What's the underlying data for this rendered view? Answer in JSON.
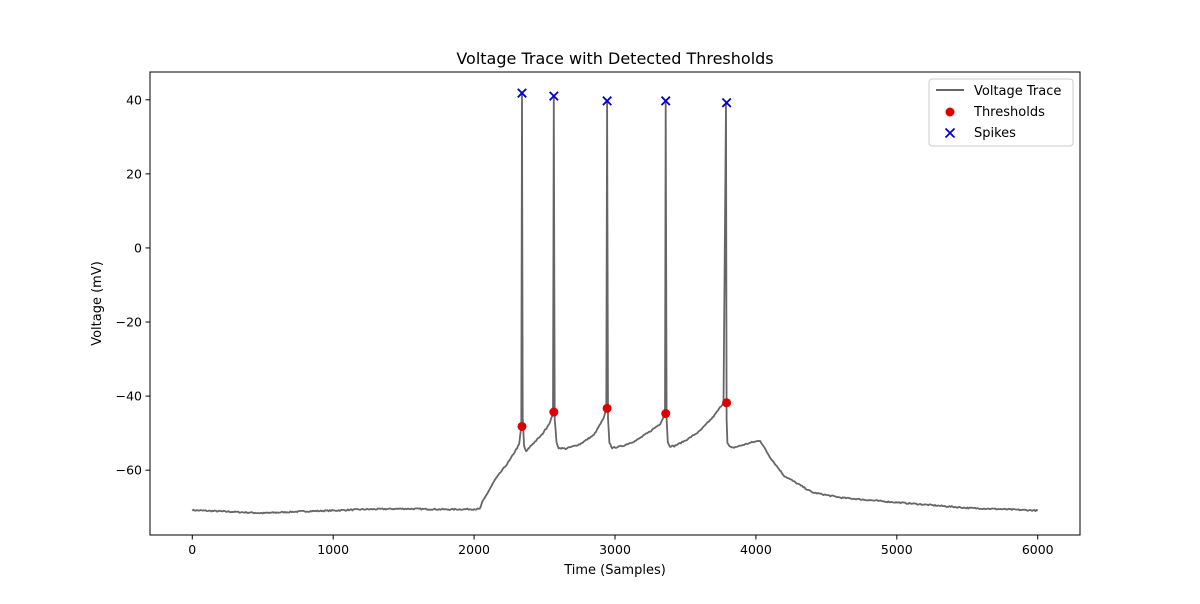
{
  "chart_data": {
    "type": "line",
    "title": "Voltage Trace with Detected Thresholds",
    "xlabel": "Time (Samples)",
    "ylabel": "Voltage (mV)",
    "xlim": [
      -300,
      6300
    ],
    "ylim": [
      -77.5,
      47.5
    ],
    "xticks": [
      0,
      1000,
      2000,
      3000,
      4000,
      5000,
      6000
    ],
    "yticks": [
      -60,
      -40,
      -20,
      0,
      20,
      40
    ],
    "grid": false,
    "legend_position": "top-right",
    "colors": {
      "trace": "#666666",
      "threshold": "#dd0000",
      "spike": "#0000cc"
    },
    "series": [
      {
        "name": "Voltage Trace",
        "kind": "line",
        "x": [
          0,
          200,
          500,
          800,
          1000,
          1200,
          1500,
          1800,
          2040,
          2060,
          2150,
          2250,
          2320,
          2335,
          2340,
          2345,
          2355,
          2370,
          2400,
          2480,
          2540,
          2560,
          2566,
          2572,
          2585,
          2600,
          2650,
          2750,
          2850,
          2920,
          2938,
          2944,
          2950,
          2960,
          2980,
          3050,
          3150,
          3250,
          3320,
          3355,
          3360,
          3366,
          3375,
          3390,
          3420,
          3500,
          3600,
          3700,
          3770,
          3788,
          3792,
          3798,
          3810,
          3830,
          3900,
          3970,
          4030,
          4100,
          4200,
          4400,
          4600,
          4900,
          5200,
          5500,
          5800,
          6000
        ],
        "y": [
          -70.8,
          -71.1,
          -71.6,
          -71.1,
          -70.9,
          -70.6,
          -70.4,
          -70.6,
          -70.5,
          -68.5,
          -62.5,
          -57.5,
          -53.0,
          -48.2,
          41.5,
          -46.0,
          -53.5,
          -55.0,
          -53.5,
          -50.5,
          -47.0,
          -44.5,
          40.5,
          -46.0,
          -52.5,
          -54.0,
          -54.2,
          -53.0,
          -50.5,
          -46.0,
          -43.5,
          39.5,
          -46.0,
          -52.5,
          -54.0,
          -53.5,
          -52.0,
          -49.5,
          -47.5,
          -44.8,
          39.5,
          -46.0,
          -52.5,
          -53.5,
          -53.5,
          -52.0,
          -49.5,
          -45.5,
          -41.8,
          39.0,
          -46.0,
          -52.5,
          -53.5,
          -54.0,
          -53.3,
          -52.5,
          -52.0,
          -56.5,
          -61.5,
          -66.0,
          -67.4,
          -68.4,
          -69.3,
          -70.2,
          -70.6,
          -70.9
        ]
      },
      {
        "name": "Thresholds",
        "kind": "scatter",
        "marker": "circle",
        "x": [
          2340,
          2566,
          2944,
          3360,
          3792
        ],
        "y": [
          -48.2,
          -44.3,
          -43.3,
          -44.7,
          -41.8
        ]
      },
      {
        "name": "Spikes",
        "kind": "scatter",
        "marker": "x",
        "x": [
          2340,
          2566,
          2944,
          3360,
          3792
        ],
        "y": [
          41.8,
          41.0,
          39.7,
          39.7,
          39.2
        ]
      }
    ]
  }
}
